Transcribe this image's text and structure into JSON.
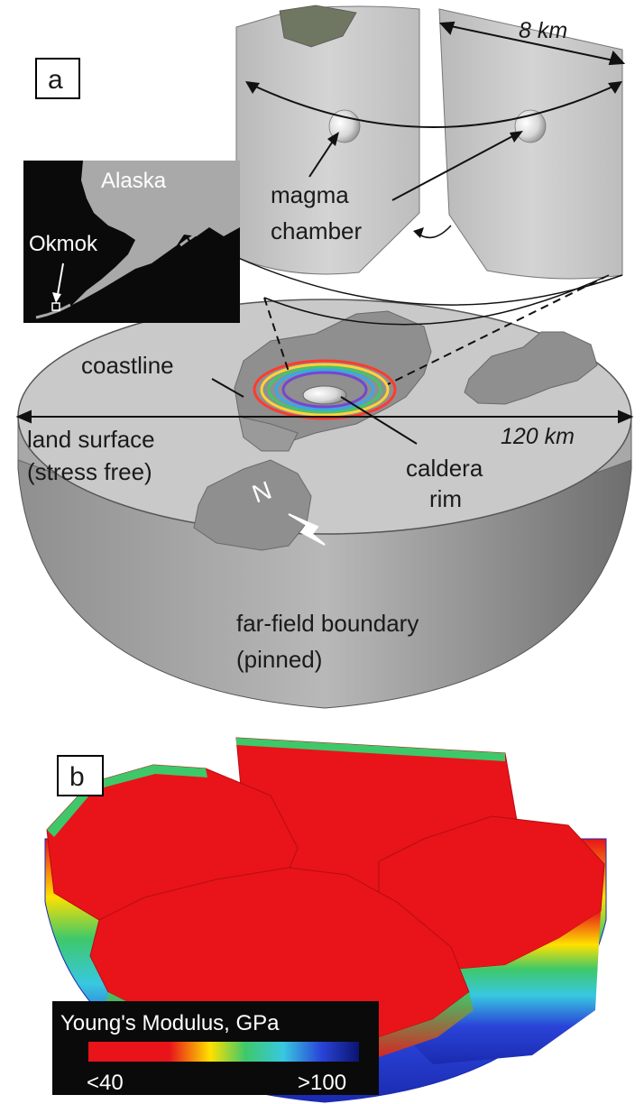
{
  "panel_a": {
    "letter": "a",
    "scale_top": "8 km",
    "scale_main": "120 km",
    "inset": {
      "region": "Alaska",
      "volcano": "Okmok"
    },
    "labels": {
      "magma_line1": "magma",
      "magma_line2": "chamber",
      "coastline": "coastline",
      "land_line1": "land surface",
      "land_line2": "(stress free)",
      "caldera_line1": "caldera",
      "caldera_line2": "rim",
      "north": "N",
      "far_line1": "far-field boundary",
      "far_line2": "(pinned)"
    }
  },
  "panel_b": {
    "letter": "b",
    "colorbar": {
      "title": "Young's Modulus, GPa",
      "min_label": "<40",
      "max_label": ">100",
      "colors": [
        "#e8141a",
        "#ffe100",
        "#3ec86a",
        "#38c8e0",
        "#2a44d8",
        "#0a1470"
      ]
    }
  }
}
